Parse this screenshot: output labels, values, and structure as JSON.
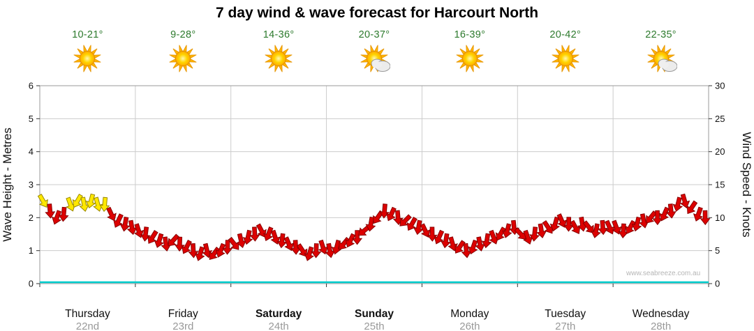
{
  "title": "7 day wind & wave forecast for Harcourt North",
  "watermark": "www.seabreeze.com.au",
  "axes": {
    "left_label": "Wave Height - Metres",
    "right_label": "Wind Speed - Knots",
    "left_ticks": [
      0,
      1,
      2,
      3,
      4,
      5,
      6
    ],
    "right_ticks": [
      0,
      5,
      10,
      15,
      20,
      25,
      30
    ]
  },
  "days": [
    {
      "name": "Thursday",
      "date": "22nd",
      "temp": "10-21°",
      "icon": "sun",
      "bold": false
    },
    {
      "name": "Friday",
      "date": "23rd",
      "temp": "9-28°",
      "icon": "sun",
      "bold": false
    },
    {
      "name": "Saturday",
      "date": "24th",
      "temp": "14-36°",
      "icon": "sun",
      "bold": true
    },
    {
      "name": "Sunday",
      "date": "25th",
      "temp": "20-37°",
      "icon": "sun-cloud",
      "bold": true
    },
    {
      "name": "Monday",
      "date": "26th",
      "temp": "16-39°",
      "icon": "sun",
      "bold": false
    },
    {
      "name": "Tuesday",
      "date": "27th",
      "temp": "20-42°",
      "icon": "sun",
      "bold": false
    },
    {
      "name": "Wednesday",
      "date": "28th",
      "temp": "22-35°",
      "icon": "sun-cloud",
      "bold": false
    }
  ],
  "chart_data": {
    "type": "wind-arrow-series",
    "title": "7 day wind & wave forecast for Harcourt North",
    "x_unit": "7 days, 14 samples per day",
    "ylim_left_metres": [
      0,
      6
    ],
    "ylim_right_knots": [
      0,
      30
    ],
    "wave_height_m_constant": 0,
    "wind_knots": [
      12.5,
      11,
      10,
      10.5,
      12,
      12.5,
      12,
      12.5,
      12,
      12,
      10.5,
      9.5,
      9,
      8.5,
      8,
      7.5,
      7,
      6.5,
      6,
      6.5,
      6,
      5.5,
      5,
      4.5,
      5,
      4.5,
      5,
      5.5,
      6,
      6.5,
      7,
      7.5,
      8,
      7.5,
      7,
      6.5,
      6,
      5.5,
      5,
      4.5,
      5,
      5.5,
      5,
      5.5,
      6,
      6.5,
      7,
      8,
      9,
      10,
      11,
      10.5,
      10,
      9.5,
      9,
      8.5,
      8,
      7.5,
      7,
      6.5,
      6,
      5.5,
      5,
      5.5,
      6,
      6.5,
      7,
      7.5,
      8,
      8.5,
      7.5,
      7,
      7.5,
      8,
      8.5,
      9,
      9.5,
      9,
      8.5,
      9,
      8.5,
      8,
      8.5,
      8.5,
      8.5,
      8,
      8.5,
      9,
      9.5,
      10,
      10,
      10.5,
      11,
      12,
      12.5,
      11.5,
      10.5,
      10
    ],
    "wind_dir_deg": [
      150,
      175,
      200,
      185,
      160,
      210,
      170,
      195,
      165,
      185,
      155,
      205,
      190,
      170,
      162,
      187,
      212,
      197,
      172,
      222,
      182,
      207,
      177,
      197,
      167,
      217,
      202,
      182,
      142,
      167,
      192,
      177,
      152,
      202,
      162,
      187,
      157,
      177,
      147,
      197,
      182,
      162,
      170,
      195,
      220,
      205,
      180,
      230,
      190,
      215,
      185,
      205,
      175,
      225,
      210,
      190,
      154,
      179,
      204,
      189,
      164,
      214,
      174,
      199,
      169,
      189,
      159,
      209,
      194,
      174,
      136,
      161,
      186,
      171,
      146,
      196,
      156,
      181,
      151,
      171,
      141,
      191,
      176,
      156,
      159,
      184,
      209,
      194,
      169,
      219,
      179,
      204,
      174,
      194,
      164,
      214,
      199,
      179
    ],
    "yellow_indices": [
      0,
      4,
      5,
      6,
      7,
      8,
      9
    ],
    "colors": {
      "arrow_red": "#dd0000",
      "arrow_red_stroke": "#880000",
      "arrow_yellow": "#ffe800",
      "arrow_yellow_stroke": "#998800",
      "wave_line": "#00cccc",
      "grid": "#cccccc",
      "frame": "#999999",
      "tick": "#333333",
      "temp_text": "#2d7a2d",
      "date_text": "#999999",
      "day_text": "#111111"
    }
  }
}
